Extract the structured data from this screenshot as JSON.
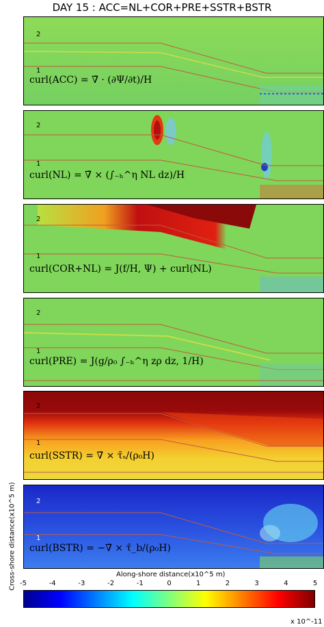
{
  "title": "DAY 15 : ACC=NL+COR+PRE+SSTR+BSTR",
  "chart_data": {
    "type": "heatmap",
    "ylabel": "Cross-shore distance(x10^5 m)",
    "xlabel": "Along-shore distance(x10^5 m)",
    "y_ticks": [
      "1",
      "2"
    ],
    "colorbar": {
      "ticks": [
        "-5",
        "-4",
        "-3",
        "-2",
        "-1",
        "0",
        "1",
        "2",
        "3",
        "4",
        "5"
      ],
      "range": [
        -5,
        5
      ],
      "scale_label": "x 10^-11",
      "colormap": "jet"
    },
    "panels": [
      {
        "name": "ACC",
        "equation_label": "curl(ACC) = ∇̄ · (∂Ψ/∂t)/H",
        "background": "#7fd65a"
      },
      {
        "name": "NL",
        "equation_label": "curl(NL) = ∇̄ × (∫₋ₕ^η NL dz)/H",
        "background": "#7fd65a"
      },
      {
        "name": "COR+NL",
        "equation_label": "curl(COR+NL) = J(f/H, Ψ) + curl(NL)",
        "background": "#7fd65a"
      },
      {
        "name": "PRE",
        "equation_label": "curl(PRE) = J(g/ρ₀ ∫₋ₕ^η zρ dz, 1/H)",
        "background": "#7fd65a"
      },
      {
        "name": "SSTR",
        "equation_label": "curl(SSTR) = ∇̄ × τ̄ₛ/(ρ₀H)",
        "background": "#f2d02a"
      },
      {
        "name": "BSTR",
        "equation_label": "curl(BSTR) = −∇̄ × τ̄_b/(ρ₀H)",
        "background": "#1e34d8"
      }
    ]
  }
}
